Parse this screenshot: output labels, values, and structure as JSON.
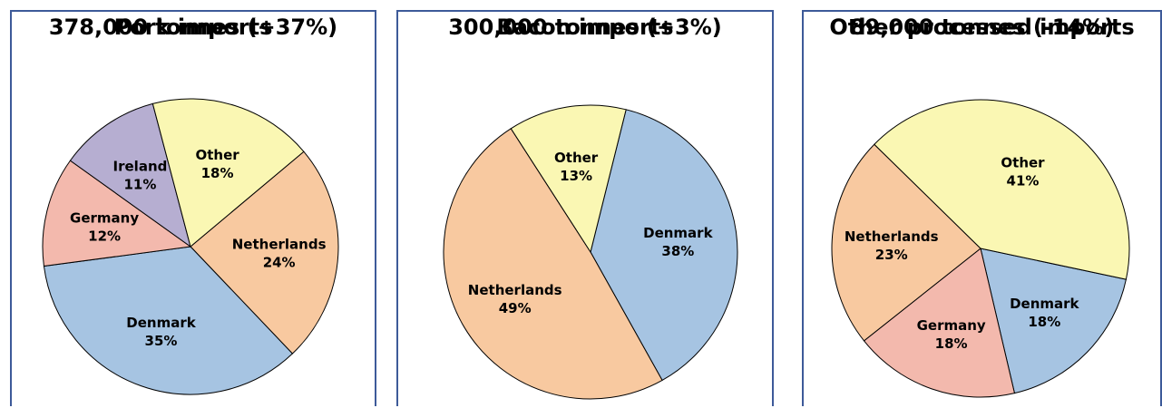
{
  "chart_data": [
    {
      "type": "pie",
      "title": "Pork imports",
      "subtitle": "378,000 tonnes (+37%)",
      "slices": [
        {
          "label": "Netherlands",
          "value": 24,
          "value_label": "24%",
          "color": "#f8c9a0"
        },
        {
          "label": "Denmark",
          "value": 35,
          "value_label": "35%",
          "color": "#a6c4e2"
        },
        {
          "label": "Germany",
          "value": 12,
          "value_label": "12%",
          "color": "#f3b9ad"
        },
        {
          "label": "Ireland",
          "value": 11,
          "value_label": "11%",
          "color": "#b6aed1"
        },
        {
          "label": "Other",
          "value": 18,
          "value_label": "18%",
          "color": "#faf7b3"
        }
      ]
    },
    {
      "type": "pie",
      "title": "Bacon imports",
      "subtitle": "300,000 tonnes (+3%)",
      "slices": [
        {
          "label": "Denmark",
          "value": 38,
          "value_label": "38%",
          "color": "#a6c4e2"
        },
        {
          "label": "Netherlands",
          "value": 49,
          "value_label": "49%",
          "color": "#f8c9a0"
        },
        {
          "label": "Other",
          "value": 13,
          "value_label": "13%",
          "color": "#faf7b3"
        }
      ]
    },
    {
      "type": "pie",
      "title": "Other processed imports",
      "subtitle": "89,000 tonnes (-14%)",
      "slices": [
        {
          "label": "Denmark",
          "value": 18,
          "value_label": "18%",
          "color": "#a6c4e2"
        },
        {
          "label": "Germany",
          "value": 18,
          "value_label": "18%",
          "color": "#f3b9ad"
        },
        {
          "label": "Netherlands",
          "value": 23,
          "value_label": "23%",
          "color": "#f8c9a0"
        },
        {
          "label": "Other",
          "value": 41,
          "value_label": "41%",
          "color": "#faf7b3"
        }
      ]
    }
  ]
}
